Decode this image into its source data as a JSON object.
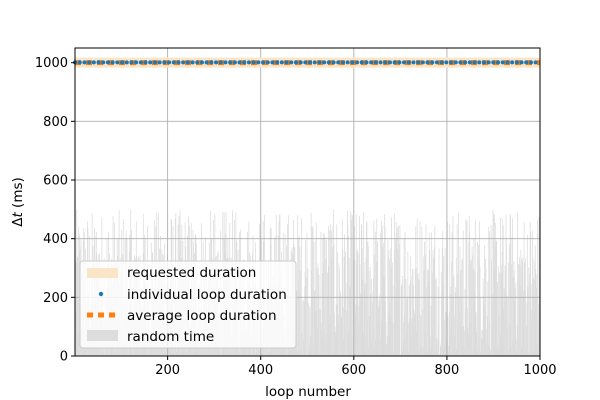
{
  "chart_data": {
    "type": "line",
    "title": "",
    "xlabel": "loop number",
    "ylabel_prefix": "Δ",
    "ylabel_var": "t",
    "ylabel_unit": " (ms)",
    "xlim": [
      1,
      1000
    ],
    "ylim": [
      0,
      1050
    ],
    "x_ticks": [
      200,
      400,
      600,
      800,
      1000
    ],
    "x_tick_labels": [
      "200",
      "400",
      "600",
      "800",
      "1000"
    ],
    "y_ticks": [
      0,
      200,
      400,
      600,
      800,
      1000
    ],
    "y_tick_labels": [
      "0",
      "200",
      "400",
      "600",
      "800",
      "1000"
    ],
    "grid": true,
    "legend_position": "lower-left",
    "series": [
      {
        "name": "requested duration",
        "kind": "band",
        "color": "#fbe5c8",
        "x": [
          1,
          1000
        ],
        "y": [
          1000,
          1000
        ]
      },
      {
        "name": "individual loop duration",
        "kind": "dotted",
        "color": "#1f77b4",
        "x": [
          1,
          1000
        ],
        "y": [
          1001,
          1001
        ]
      },
      {
        "name": "average loop duration",
        "kind": "dashed",
        "color": "#ff7f0e",
        "x": [
          1,
          1000
        ],
        "y": [
          1000,
          1000
        ]
      },
      {
        "name": "random time",
        "kind": "bars",
        "color": "#dddddd",
        "n": 1000,
        "range": [
          0,
          500
        ]
      }
    ]
  }
}
